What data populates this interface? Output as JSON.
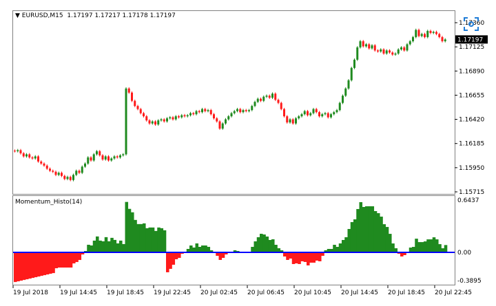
{
  "header": {
    "menu_arrow_icon": "triangle-down-icon",
    "symbol": "EURUSD,M15",
    "ohlc": "1.17197 1.17217 1.17178 1.17197"
  },
  "indicator": {
    "title": "Momentum_Histo(14)"
  },
  "overlay": {
    "icon": "screenshot-icon",
    "color": "#1e7bd6"
  },
  "colors": {
    "bull": "#1f8a1f",
    "bear": "#ff1a1a",
    "zero_line": "#0000ff",
    "frame": "#808080",
    "price_tag_bg": "#000000"
  },
  "chart_data": [
    {
      "type": "candlestick",
      "symbol": "EURUSD",
      "timeframe": "M15",
      "current_price": "1.17197",
      "y_ticks": [
        "1.17360",
        "1.17125",
        "1.16890",
        "1.16655",
        "1.16420",
        "1.16185",
        "1.15950",
        "1.15715"
      ],
      "ylim": [
        1.15715,
        1.1736
      ],
      "x_ticks": [
        "19 Jul 2018",
        "19 Jul 14:45",
        "19 Jul 18:45",
        "19 Jul 22:45",
        "20 Jul 02:45",
        "20 Jul 06:45",
        "20 Jul 10:45",
        "20 Jul 14:45",
        "20 Jul 18:45",
        "20 Jul 22:45"
      ],
      "close": [
        1.1611,
        1.1612,
        1.1609,
        1.1606,
        1.1608,
        1.1605,
        1.1604,
        1.1606,
        1.1601,
        1.1599,
        1.1597,
        1.1594,
        1.1592,
        1.1591,
        1.1588,
        1.159,
        1.1587,
        1.1584,
        1.1586,
        1.1583,
        1.1588,
        1.1592,
        1.159,
        1.1596,
        1.1599,
        1.1605,
        1.1602,
        1.1608,
        1.1611,
        1.1607,
        1.1603,
        1.1606,
        1.1602,
        1.1604,
        1.1606,
        1.1605,
        1.1607,
        1.1608,
        1.1672,
        1.1668,
        1.166,
        1.1655,
        1.1652,
        1.1648,
        1.1645,
        1.1641,
        1.1638,
        1.164,
        1.1637,
        1.1641,
        1.1642,
        1.164,
        1.1643,
        1.1644,
        1.1642,
        1.1645,
        1.1644,
        1.1646,
        1.1645,
        1.1646,
        1.1648,
        1.1647,
        1.165,
        1.1649,
        1.1652,
        1.165,
        1.1651,
        1.1647,
        1.1643,
        1.164,
        1.1633,
        1.1638,
        1.1642,
        1.1645,
        1.1648,
        1.165,
        1.1652,
        1.1649,
        1.1651,
        1.165,
        1.1651,
        1.1655,
        1.1659,
        1.1662,
        1.166,
        1.1664,
        1.1665,
        1.1663,
        1.1667,
        1.1661,
        1.1658,
        1.1652,
        1.1645,
        1.1639,
        1.1642,
        1.1638,
        1.1643,
        1.1645,
        1.1647,
        1.165,
        1.1646,
        1.1648,
        1.1652,
        1.1649,
        1.1645,
        1.1647,
        1.1648,
        1.1644,
        1.1647,
        1.1649,
        1.1651,
        1.1658,
        1.1665,
        1.1672,
        1.168,
        1.1692,
        1.17,
        1.1712,
        1.1718,
        1.1713,
        1.1715,
        1.1711,
        1.1714,
        1.1709,
        1.1708,
        1.171,
        1.1706,
        1.1709,
        1.1707,
        1.1705,
        1.1706,
        1.171,
        1.1712,
        1.1709,
        1.1715,
        1.1718,
        1.1722,
        1.1729,
        1.1723,
        1.1725,
        1.1722,
        1.1728,
        1.1726,
        1.1727,
        1.1725,
        1.1722,
        1.1718,
        1.17197
      ]
    },
    {
      "type": "bar",
      "name": "Momentum_Histo(14)",
      "period": 14,
      "y_ticks": [
        "0.6437",
        "0.00",
        "-0.3895"
      ],
      "ylim": [
        -0.3895,
        0.6437
      ],
      "zero_line": true
    }
  ]
}
